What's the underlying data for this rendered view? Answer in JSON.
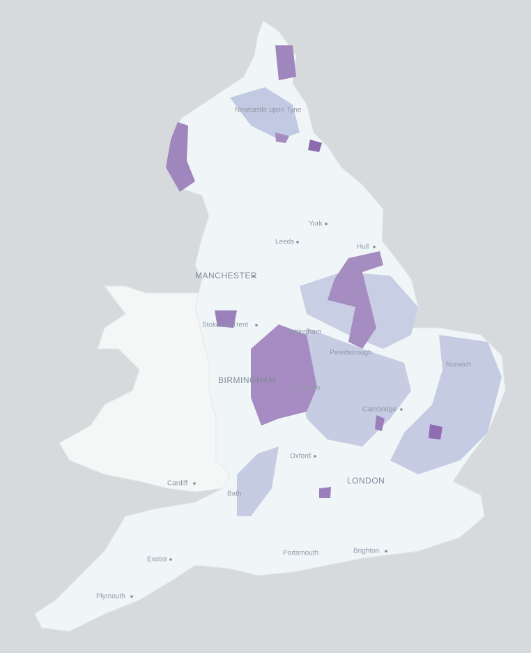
{
  "map": {
    "labels": [
      "Newcastle upon Tyne",
      "York",
      "Leeds",
      "Hull",
      "MANCHESTER",
      "Stoke-on-Trent",
      "Nottingham",
      "Peterborough",
      "Norwich",
      "BIRMINGHAM",
      "Coventry",
      "Cambridge",
      "Oxford",
      "LONDON",
      "Cardiff",
      "Bath",
      "Exeter",
      "Portsmouth",
      "Brighton",
      "Plymouth"
    ]
  }
}
